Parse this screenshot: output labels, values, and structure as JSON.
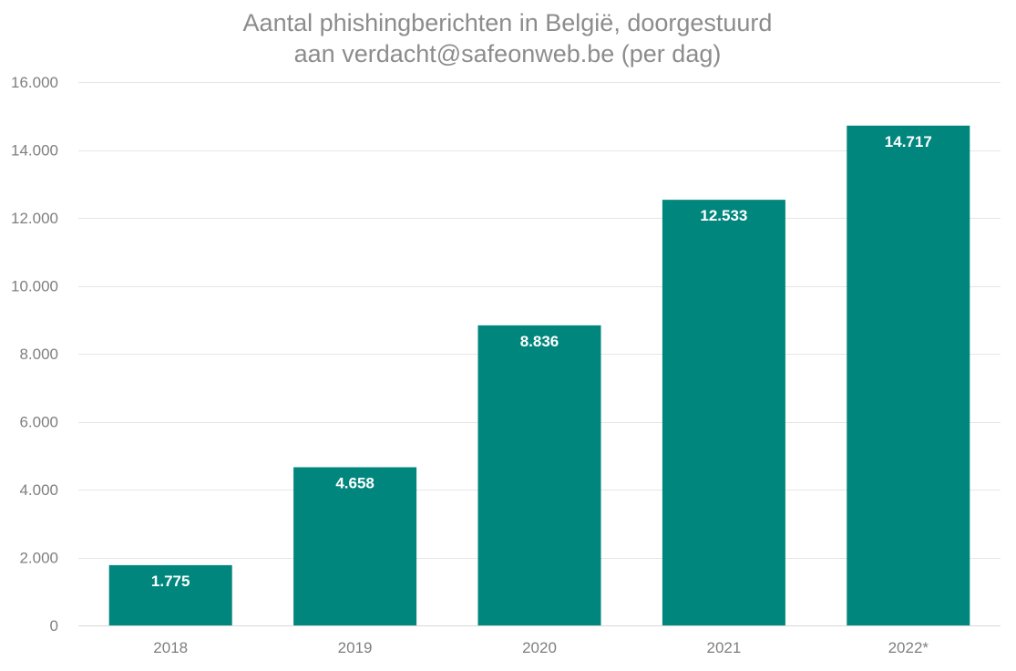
{
  "chart_data": {
    "type": "bar",
    "title_lines": [
      "Aantal phishingberichten in België, doorgestuurd",
      "aan verdacht@safeonweb.be (per dag)"
    ],
    "categories": [
      "2018",
      "2019",
      "2020",
      "2021",
      "2022*"
    ],
    "values": [
      1775,
      4658,
      8836,
      12533,
      14717
    ],
    "value_labels": [
      "1.775",
      "4.658",
      "8.836",
      "12.533",
      "14.717"
    ],
    "yticks": [
      0,
      2000,
      4000,
      6000,
      8000,
      10000,
      12000,
      14000,
      16000
    ],
    "ytick_labels": [
      "0",
      "2.000",
      "4.000",
      "6.000",
      "8.000",
      "10.000",
      "12.000",
      "14.000",
      "16.000"
    ],
    "ylim": [
      0,
      16000
    ],
    "xlabel": "",
    "ylabel": "",
    "grid": true,
    "legend": "none",
    "bar_color": "#00867d"
  }
}
